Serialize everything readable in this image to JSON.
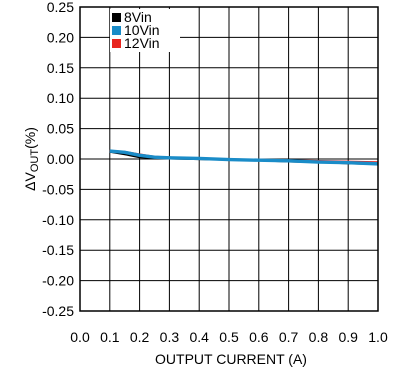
{
  "chart_data": {
    "type": "line",
    "title": "",
    "xlabel": "OUTPUT CURRENT (A)",
    "ylabel_prefix": "ΔV",
    "ylabel_sub": "OUT",
    "ylabel_suffix": "(%)",
    "xlim": [
      0.0,
      1.0
    ],
    "ylim": [
      -0.25,
      0.25
    ],
    "x_ticks": [
      "0.0",
      "0.1",
      "0.2",
      "0.3",
      "0.4",
      "0.5",
      "0.6",
      "0.7",
      "0.8",
      "0.9",
      "1.0"
    ],
    "y_ticks": [
      "0.25",
      "0.20",
      "0.15",
      "0.10",
      "0.05",
      "0.00",
      "-0.05",
      "-0.10",
      "-0.15",
      "-0.20",
      "-0.25"
    ],
    "grid": true,
    "legend_position": "top-left",
    "series": [
      {
        "name": "8Vin",
        "color": "#000000",
        "x": [
          0.1,
          0.15,
          0.2,
          0.25,
          0.3,
          0.4,
          0.5,
          0.6,
          0.7,
          0.8,
          0.9,
          1.0
        ],
        "y": [
          0.012,
          0.008,
          0.003,
          0.002,
          0.001,
          0.0,
          -0.001,
          -0.002,
          -0.004,
          -0.005,
          -0.007,
          -0.008
        ]
      },
      {
        "name": "10Vin",
        "color": "#1a8cc8",
        "x": [
          0.1,
          0.15,
          0.2,
          0.25,
          0.3,
          0.4,
          0.5,
          0.6,
          0.7,
          0.8,
          0.9,
          1.0
        ],
        "y": [
          0.013,
          0.011,
          0.006,
          0.003,
          0.002,
          0.001,
          -0.001,
          -0.002,
          -0.003,
          -0.005,
          -0.006,
          -0.008
        ]
      },
      {
        "name": "12Vin",
        "color": "#e8251f",
        "x": [
          0.1,
          0.15,
          0.2,
          0.25,
          0.3,
          0.4,
          0.5,
          0.6,
          0.7,
          0.8,
          0.9,
          1.0
        ],
        "y": [
          0.014,
          0.012,
          0.008,
          0.004,
          0.003,
          0.001,
          0.0,
          -0.001,
          -0.002,
          -0.003,
          -0.004,
          -0.005
        ]
      }
    ]
  }
}
